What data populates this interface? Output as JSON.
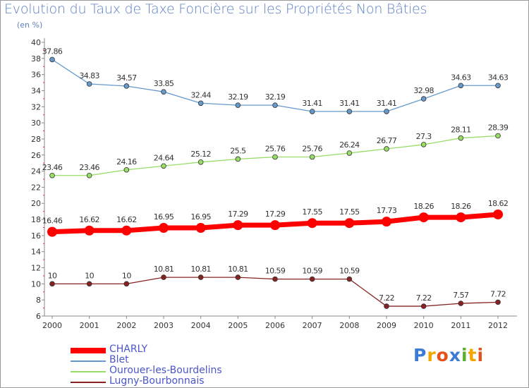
{
  "title": "Evolution du Taux de Taxe Foncière sur les Propriétés Non Bâties",
  "unit": "(en %)",
  "logo": {
    "letters": [
      "P",
      "r",
      "o",
      "x",
      "i",
      "t",
      "i"
    ],
    "colors": [
      "#3a7bd5",
      "#f2a600",
      "#e8501a",
      "#3a7bd5",
      "#58b02f",
      "#f2a600",
      "#e8501a"
    ]
  },
  "chart_data": {
    "type": "line",
    "title": "Evolution du Taux de Taxe Foncière sur les Propriétés Non Bâties",
    "ylabel": "(en %)",
    "xlabel": "",
    "x": [
      2000,
      2001,
      2002,
      2003,
      2004,
      2005,
      2006,
      2007,
      2008,
      2009,
      2010,
      2011,
      2012
    ],
    "x_ticks": [
      "2000",
      "2001",
      "2002",
      "2003",
      "2004",
      "2005",
      "2006",
      "2007",
      "2008",
      "2009",
      "2010",
      "2011",
      "2012"
    ],
    "ylim": [
      6,
      40
    ],
    "y_ticks": [
      6,
      8,
      10,
      12,
      14,
      16,
      18,
      20,
      22,
      24,
      26,
      28,
      30,
      32,
      34,
      36,
      38,
      40
    ],
    "grid": false,
    "series": [
      {
        "name": "Blet",
        "color": "#6699cc",
        "emphasis": false,
        "values": [
          37.86,
          34.83,
          34.57,
          33.85,
          32.44,
          32.19,
          32.19,
          31.41,
          31.41,
          31.41,
          32.98,
          34.63,
          34.63
        ],
        "labels": [
          "37.86",
          "34.83",
          "34.57",
          "33.85",
          "32.44",
          "32.19",
          "32.19",
          "31.41",
          "31.41",
          "31.41",
          "32.98",
          "34.63",
          "34.63"
        ]
      },
      {
        "name": "Ourouer-les-Bourdelins",
        "color": "#99dd66",
        "emphasis": false,
        "values": [
          23.46,
          23.46,
          24.16,
          24.64,
          25.12,
          25.5,
          25.76,
          25.76,
          26.24,
          26.77,
          27.3,
          28.11,
          28.39
        ],
        "labels": [
          "23.46",
          "23.46",
          "24.16",
          "24.64",
          "25.12",
          "25.5",
          "25.76",
          "25.76",
          "26.24",
          "26.77",
          "27.3",
          "28.11",
          "28.39"
        ]
      },
      {
        "name": "CHARLY",
        "color": "#ff0000",
        "emphasis": true,
        "values": [
          16.46,
          16.62,
          16.62,
          16.95,
          16.95,
          17.29,
          17.29,
          17.55,
          17.55,
          17.73,
          18.26,
          18.26,
          18.62
        ],
        "labels": [
          "16.46",
          "16.62",
          "16.62",
          "16.95",
          "16.95",
          "17.29",
          "17.29",
          "17.55",
          "17.55",
          "17.73",
          "18.26",
          "18.26",
          "18.62"
        ]
      },
      {
        "name": "Lugny-Bourbonnais",
        "color": "#882222",
        "emphasis": false,
        "values": [
          10,
          10,
          10,
          10.81,
          10.81,
          10.81,
          10.59,
          10.59,
          10.59,
          7.22,
          7.22,
          7.57,
          7.72
        ],
        "labels": [
          "10",
          "10",
          "10",
          "10.81",
          "10.81",
          "10.81",
          "10.59",
          "10.59",
          "10.59",
          "7.22",
          "7.22",
          "7.57",
          "7.72"
        ]
      }
    ],
    "legend": [
      "CHARLY",
      "Blet",
      "Ourouer-les-Bourdelins",
      "Lugny-Bourbonnais"
    ],
    "legend_position": "bottom-left"
  }
}
